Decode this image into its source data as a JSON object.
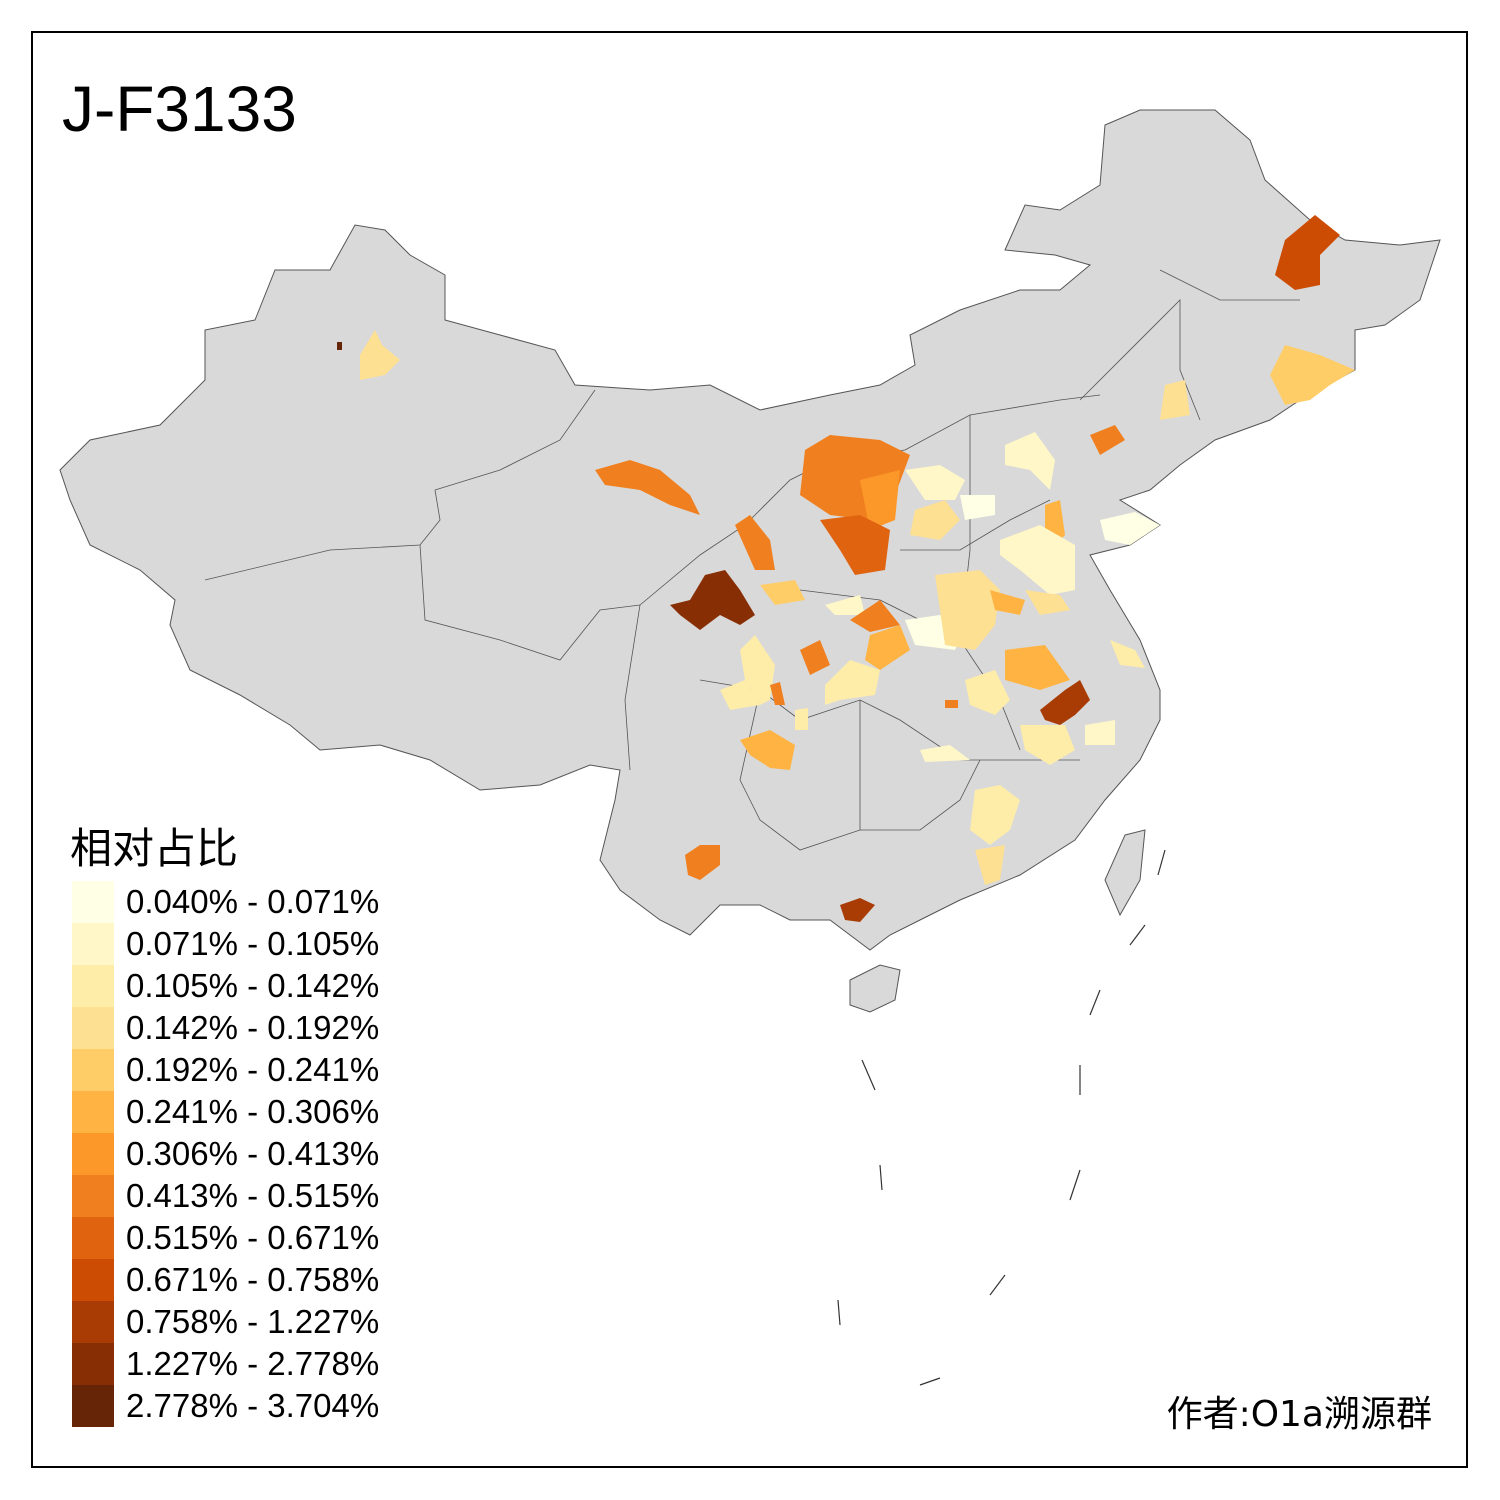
{
  "title": "J-F3133",
  "legend": {
    "title": "相对占比",
    "items": [
      {
        "label": "0.040% - 0.071%",
        "color": "#FFFFE5"
      },
      {
        "label": "0.071% - 0.105%",
        "color": "#FFF7C8"
      },
      {
        "label": "0.105% - 0.142%",
        "color": "#FEECA9"
      },
      {
        "label": "0.142% - 0.192%",
        "color": "#FEE092"
      },
      {
        "label": "0.192% - 0.241%",
        "color": "#FECD68"
      },
      {
        "label": "0.241% - 0.306%",
        "color": "#FEB342"
      },
      {
        "label": "0.306% - 0.413%",
        "color": "#FC9829"
      },
      {
        "label": "0.413% - 0.515%",
        "color": "#F0801F"
      },
      {
        "label": "0.515% - 0.671%",
        "color": "#E06410"
      },
      {
        "label": "0.671% - 0.758%",
        "color": "#CC4C03"
      },
      {
        "label": "0.758% - 1.227%",
        "color": "#A83C04"
      },
      {
        "label": "1.227% - 2.778%",
        "color": "#872E05"
      },
      {
        "label": "2.778% - 3.704%",
        "color": "#662506"
      }
    ]
  },
  "map": {
    "base_color": "#D9D9D9",
    "border_color": "#555555"
  },
  "author": "作者:O1a溯源群"
}
